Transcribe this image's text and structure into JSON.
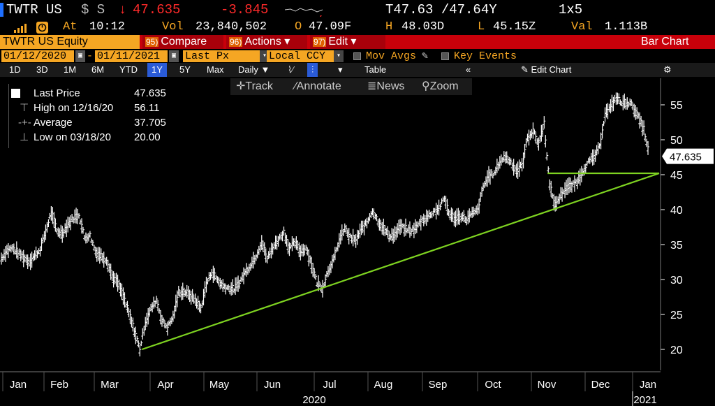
{
  "header": {
    "ticker": "TWTR US",
    "currency_flag": "$ S",
    "arrow": "↓",
    "last": "47.635",
    "change": "-3.845",
    "quote": "T47.63 /47.64Y",
    "size": "1x5"
  },
  "stats": {
    "at_label": "At",
    "time": "10:12",
    "vol_label": "Vol",
    "volume": "23,840,502",
    "open_label": "O",
    "open": "47.09F",
    "high_label": "H",
    "high": "48.03D",
    "low_label": "L",
    "low": "45.15Z",
    "val_label": "Val",
    "value": "1.113B"
  },
  "toolbar1": {
    "security": "TWTR US Equity",
    "compare_num": "95)",
    "compare": "Compare",
    "actions_num": "96)",
    "actions": "Actions ▾",
    "edit_num": "97)",
    "edit": "Edit ▾",
    "title": "Bar Chart"
  },
  "toolbar2": {
    "start_date": "01/12/2020",
    "end_date": "01/11/2021",
    "field": "Last Px",
    "ccy": "Local CCY",
    "mov_avgs": "Mov Avgs",
    "key_events": "Key Events"
  },
  "toolbar3": {
    "periods": [
      "1D",
      "3D",
      "1M",
      "6M",
      "YTD",
      "1Y",
      "5Y",
      "Max"
    ],
    "selected": "1Y",
    "freq": "Daily ▼",
    "table": "Table",
    "collapse": "«",
    "edit_chart": "✎ Edit Chart",
    "gear": "⚙"
  },
  "chart_tools": {
    "track": "Track",
    "annotate": "Annotate",
    "news": "News",
    "zoom": "Zoom"
  },
  "legend_panel": {
    "last_label": "Last Price",
    "last_value": "47.635",
    "high_label": "High on 12/16/20",
    "high_value": "56.11",
    "avg_label": "Average",
    "avg_value": "37.705",
    "low_label": "Low on 03/18/20",
    "low_value": "20.00"
  },
  "colors": {
    "accent_amber": "#f5a623",
    "down_red": "#ff2a2a",
    "trend_green": "#7ed321",
    "bars": "#ffffff",
    "title_bar_red": "#c8000a"
  },
  "chart_data": {
    "type": "bar",
    "title": "Bar Chart",
    "series": [
      {
        "name": "Last Price",
        "values": [
          [
            0,
            33.0
          ],
          [
            1,
            34.2
          ],
          [
            2,
            34.5
          ],
          [
            3,
            33.8
          ],
          [
            4,
            33.2
          ],
          [
            5,
            32.6
          ],
          [
            6,
            33.4
          ],
          [
            7,
            34.3
          ],
          [
            8,
            36.8
          ],
          [
            9,
            39.6
          ],
          [
            10,
            37.0
          ],
          [
            11,
            36.6
          ],
          [
            12,
            37.9
          ],
          [
            13,
            38.8
          ],
          [
            14,
            39.3
          ],
          [
            15,
            36.0
          ],
          [
            16,
            36.3
          ],
          [
            17,
            34.0
          ],
          [
            18,
            33.4
          ],
          [
            19,
            32.8
          ],
          [
            20,
            30.5
          ],
          [
            21,
            29.5
          ],
          [
            22,
            27.6
          ],
          [
            23,
            25.2
          ],
          [
            24,
            22.7
          ],
          [
            25,
            20.0
          ],
          [
            26,
            23.9
          ],
          [
            27,
            25.8
          ],
          [
            28,
            27.1
          ],
          [
            29,
            24.1
          ],
          [
            30,
            23.2
          ],
          [
            31,
            24.6
          ],
          [
            32,
            28.2
          ],
          [
            33,
            28.3
          ],
          [
            34,
            27.8
          ],
          [
            35,
            27.1
          ],
          [
            36,
            25.8
          ],
          [
            37,
            29.3
          ],
          [
            38,
            31.1
          ],
          [
            39,
            30.0
          ],
          [
            40,
            29.1
          ],
          [
            41,
            28.8
          ],
          [
            42,
            28.6
          ],
          [
            43,
            29.6
          ],
          [
            44,
            31.0
          ],
          [
            45,
            32.1
          ],
          [
            46,
            33.4
          ],
          [
            47,
            35.4
          ],
          [
            48,
            32.9
          ],
          [
            49,
            34.6
          ],
          [
            50,
            35.7
          ],
          [
            51,
            36.8
          ],
          [
            52,
            34.4
          ],
          [
            53,
            35.3
          ],
          [
            54,
            34.0
          ],
          [
            55,
            34.6
          ],
          [
            56,
            32.2
          ],
          [
            57,
            29.5
          ],
          [
            58,
            28.8
          ],
          [
            59,
            31.3
          ],
          [
            60,
            32.8
          ],
          [
            61,
            35.6
          ],
          [
            62,
            37.3
          ],
          [
            63,
            36.0
          ],
          [
            64,
            35.6
          ],
          [
            65,
            37.2
          ],
          [
            66,
            38.1
          ],
          [
            67,
            39.9
          ],
          [
            68,
            38.4
          ],
          [
            69,
            37.3
          ],
          [
            70,
            36.3
          ],
          [
            71,
            36.4
          ],
          [
            72,
            37.6
          ],
          [
            73,
            37.2
          ],
          [
            74,
            37.0
          ],
          [
            75,
            37.5
          ],
          [
            76,
            38.6
          ],
          [
            77,
            39.0
          ],
          [
            78,
            39.7
          ],
          [
            79,
            40.2
          ],
          [
            80,
            41.6
          ],
          [
            81,
            39.2
          ],
          [
            82,
            38.8
          ],
          [
            83,
            39.1
          ],
          [
            84,
            38.6
          ],
          [
            85,
            39.4
          ],
          [
            86,
            39.9
          ],
          [
            87,
            43.2
          ],
          [
            88,
            44.9
          ],
          [
            89,
            45.1
          ],
          [
            90,
            46.9
          ],
          [
            91,
            47.6
          ],
          [
            92,
            46.8
          ],
          [
            93,
            45.6
          ],
          [
            94,
            46.3
          ],
          [
            95,
            50.3
          ],
          [
            96,
            51.3
          ],
          [
            97,
            49.4
          ],
          [
            98,
            52.3
          ],
          [
            99,
            43.4
          ],
          [
            100,
            40.6
          ],
          [
            101,
            42.1
          ],
          [
            102,
            43.2
          ],
          [
            103,
            43.4
          ],
          [
            104,
            44.1
          ],
          [
            105,
            45.6
          ],
          [
            106,
            46.8
          ],
          [
            107,
            47.5
          ],
          [
            108,
            48.9
          ],
          [
            109,
            53.8
          ],
          [
            110,
            54.6
          ],
          [
            111,
            56.1
          ],
          [
            112,
            55.2
          ],
          [
            113,
            55.4
          ],
          [
            114,
            54.9
          ],
          [
            115,
            53.2
          ],
          [
            116,
            51.5
          ],
          [
            117,
            47.6
          ]
        ]
      }
    ],
    "x_tick_labels": [
      "Jan",
      "Feb",
      "Mar",
      "Apr",
      "May",
      "Jun",
      "Jul",
      "Aug",
      "Sep",
      "Oct",
      "Nov",
      "Dec",
      "Jan"
    ],
    "x_year_labels": [
      "2020",
      "2021"
    ],
    "y_ticks": [
      20,
      25,
      30,
      35,
      40,
      45,
      50,
      55
    ],
    "ylim": [
      17.5,
      58
    ],
    "last_price_label": "47.635",
    "trendlines": [
      {
        "from": [
          "03/18/20",
          20.0
        ],
        "to": [
          "01/11/21",
          45.2
        ]
      },
      {
        "from": [
          "10/26/20",
          45.2
        ],
        "to": [
          "01/11/21",
          45.2
        ]
      }
    ],
    "grid": false,
    "legend": "top-left"
  }
}
